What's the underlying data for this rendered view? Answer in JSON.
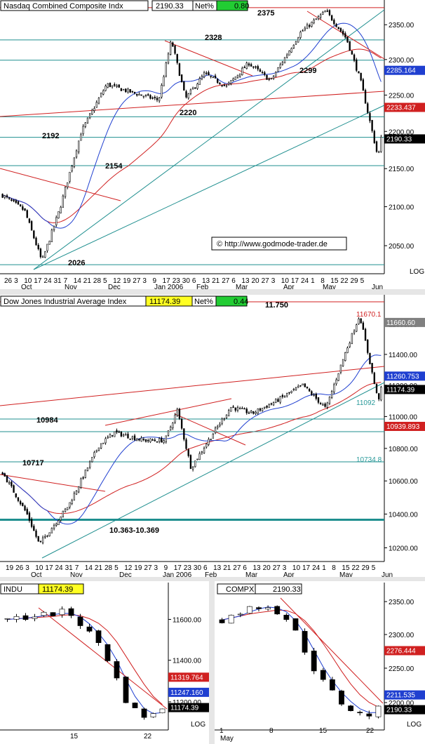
{
  "panels": [
    {
      "id": "nasdaq",
      "header": {
        "title": "Nasdaq Combined Composite Indx",
        "value": "2190.33",
        "net_label": "Net%",
        "net_value": "0.80"
      },
      "log_label": "LOG",
      "ylim": [
        2020,
        2380
      ],
      "yticks": [
        2050,
        2100,
        2150,
        2200,
        2250,
        2300,
        2350
      ],
      "ytick_labels": [
        "2050.00",
        "2100.00",
        "2150.00",
        "2200.00",
        "2250.00",
        "2300.00",
        "2350.00"
      ],
      "right_labels": [
        {
          "text": "2285.164",
          "color": "#1f3fd0",
          "value": 2285.164
        },
        {
          "text": "2233.437",
          "color": "#d02020",
          "value": 2233.437
        },
        {
          "text": "2190.33",
          "color": "#000000",
          "value": 2190.33
        }
      ],
      "day_ticks": [
        "26",
        "3",
        "10",
        "17",
        "24",
        "31",
        "7",
        "14",
        "21",
        "28",
        "5",
        "12",
        "19",
        "27",
        "3",
        "9",
        "17",
        "23",
        "30",
        "6",
        "13",
        "21",
        "27",
        "6",
        "13",
        "20",
        "27",
        "3",
        "10",
        "17",
        "24",
        "1",
        "8",
        "15",
        "22",
        "29",
        "5"
      ],
      "month_labels": [
        "Oct",
        "Nov",
        "Dec",
        "Jan 2006",
        "Feb",
        "Mar",
        "Apr",
        "May",
        "Jun"
      ],
      "annotations": [
        "2375",
        "2328",
        "2299",
        "2220",
        "2192",
        "2154",
        "2026"
      ],
      "watermark": "© http://www.godmode-trader.de"
    },
    {
      "id": "dow",
      "header": {
        "title": "Dow Jones Industrial Average Index",
        "value": "11174.39",
        "net_label": "Net%",
        "net_value": "0.44"
      },
      "ylim": [
        10120,
        11750
      ],
      "yticks": [
        10200,
        10400,
        10600,
        10800,
        11000,
        11200,
        11400,
        11600
      ],
      "ytick_labels": [
        "10200.00",
        "10400.00",
        "10600.00",
        "10800.00",
        "11000.00",
        "11200.00",
        "11400.00",
        "11600.00"
      ],
      "right_labels": [
        {
          "text": "11670.1",
          "color": "#d02020",
          "value": 11670.1,
          "boxed": false
        },
        {
          "text": "11660.60",
          "color": "#808080",
          "value": 11660.6,
          "boxed": true
        },
        {
          "text": "11260.753",
          "color": "#1f3fd0",
          "value": 11260.753,
          "boxed": true
        },
        {
          "text": "11174.39",
          "color": "#000000",
          "value": 11174.39,
          "boxed": true
        },
        {
          "text": "11092",
          "color": "#2a9a9a",
          "value": 11092,
          "boxed": false
        },
        {
          "text": "10939.893",
          "color": "#d02020",
          "value": 10939.893,
          "boxed": true
        },
        {
          "text": "10734.8",
          "color": "#2a9a9a",
          "value": 10734.8,
          "boxed": false
        }
      ],
      "day_ticks": [
        "19",
        "26",
        "3",
        "10",
        "17",
        "24",
        "31",
        "7",
        "14",
        "21",
        "28",
        "5",
        "12",
        "19",
        "27",
        "3",
        "9",
        "17",
        "23",
        "30",
        "6",
        "13",
        "21",
        "27",
        "6",
        "13",
        "20",
        "27",
        "3",
        "10",
        "17",
        "24",
        "1",
        "8",
        "15",
        "22",
        "29",
        "5"
      ],
      "month_labels": [
        "Oct",
        "Nov",
        "Dec",
        "Jan 2006",
        "Feb",
        "Mar",
        "Apr",
        "May",
        "Jun"
      ],
      "annotations": [
        "11.750",
        "10984",
        "10717",
        "10.363-10.369"
      ]
    },
    {
      "id": "indu",
      "header": {
        "title": "INDU",
        "value": "11174.39"
      },
      "log_label": "LOG",
      "ylim": [
        11080,
        11720
      ],
      "yticks": [
        11200,
        11400,
        11600
      ],
      "ytick_labels": [
        "11200.00",
        "11400.00",
        "11600.00"
      ],
      "right_labels": [
        {
          "text": "11319.764",
          "color": "#d02020",
          "value": 11319.764
        },
        {
          "text": "11247.160",
          "color": "#1f3fd0",
          "value": 11247.16
        },
        {
          "text": "11174.39",
          "color": "#000000",
          "value": 11174.39
        }
      ],
      "day_ticks": [
        "15",
        "22"
      ]
    },
    {
      "id": "compx",
      "header": {
        "title": "COMPX",
        "value": "2190.33"
      },
      "log_label": "LOG",
      "ylim": [
        2165,
        2362
      ],
      "yticks": [
        2200,
        2250,
        2300,
        2350
      ],
      "ytick_labels": [
        "2200.00",
        "2250.00",
        "2300.00",
        "2350.00"
      ],
      "right_labels": [
        {
          "text": "2276.444",
          "color": "#d02020",
          "value": 2276.444
        },
        {
          "text": "2211.535",
          "color": "#1f3fd0",
          "value": 2211.535
        },
        {
          "text": "2190.33",
          "color": "#000000",
          "value": 2190.33
        }
      ],
      "day_ticks": [
        "1",
        "8",
        "15",
        "22"
      ],
      "month_labels": [
        "May"
      ]
    }
  ],
  "chart_data": [
    {
      "type": "candlestick",
      "title": "Nasdaq Combined Composite Indx",
      "ylim": [
        2020,
        2380
      ],
      "log_scale": true,
      "x": [
        "2005-09-26",
        "2005-10-10",
        "2005-10-21",
        "2005-11-01",
        "2005-11-15",
        "2005-12-01",
        "2005-12-15",
        "2006-01-03",
        "2006-01-11",
        "2006-01-20",
        "2006-02-01",
        "2006-02-15",
        "2006-03-01",
        "2006-03-15",
        "2006-04-03",
        "2006-04-19",
        "2006-05-02",
        "2006-05-11",
        "2006-05-22",
        "2006-05-24"
      ],
      "close": [
        2115,
        2095,
        2030,
        2095,
        2200,
        2265,
        2255,
        2243,
        2328,
        2245,
        2280,
        2262,
        2295,
        2270,
        2339,
        2370,
        2330,
        2270,
        2165,
        2190.33
      ],
      "key_levels": [
        2375,
        2328,
        2299,
        2220,
        2192,
        2154,
        2026
      ],
      "series": [
        {
          "name": "",
          "kind": "moving-average",
          "color": "#1f3fd0",
          "last": 2285.164
        },
        {
          "name": "",
          "kind": "moving-average",
          "color": "#d02020",
          "last": 2233.437
        }
      ]
    },
    {
      "type": "candlestick",
      "title": "Dow Jones Industrial Average Index",
      "ylim": [
        10120,
        11750
      ],
      "log_scale": true,
      "x": [
        "2005-09-19",
        "2005-10-05",
        "2005-10-13",
        "2005-11-01",
        "2005-11-21",
        "2005-12-01",
        "2005-12-20",
        "2006-01-03",
        "2006-01-11",
        "2006-01-20",
        "2006-02-01",
        "2006-02-15",
        "2006-03-01",
        "2006-03-15",
        "2006-04-03",
        "2006-04-18",
        "2006-05-01",
        "2006-05-10",
        "2006-05-22",
        "2006-05-24"
      ],
      "close": [
        10650,
        10400,
        10220,
        10450,
        10820,
        10900,
        10850,
        10850,
        11040,
        10680,
        10860,
        11060,
        11020,
        11090,
        11200,
        11050,
        11420,
        11660,
        11100,
        11174.39
      ],
      "key_levels": [
        11750,
        10984,
        10717,
        10363,
        10369
      ],
      "series": [
        {
          "name": "",
          "kind": "moving-average",
          "color": "#1f3fd0",
          "last": 11260.753
        },
        {
          "name": "",
          "kind": "moving-average",
          "color": "#d02020",
          "last": 10939.893
        }
      ]
    },
    {
      "type": "candlestick",
      "title": "INDU",
      "ylim": [
        11080,
        11720
      ],
      "x": [
        "2006-05-01",
        "2006-05-08",
        "2006-05-10",
        "2006-05-15",
        "2006-05-19",
        "2006-05-22",
        "2006-05-24"
      ],
      "close": [
        11600,
        11630,
        11640,
        11470,
        11180,
        11120,
        11174.39
      ],
      "series": [
        {
          "name": "",
          "kind": "moving-average",
          "color": "#1f3fd0",
          "last": 11247.16
        },
        {
          "name": "",
          "kind": "moving-average",
          "color": "#d02020",
          "last": 11319.764
        }
      ]
    },
    {
      "type": "candlestick",
      "title": "COMPX",
      "ylim": [
        2165,
        2362
      ],
      "x": [
        "2006-05-01",
        "2006-05-05",
        "2006-05-08",
        "2006-05-11",
        "2006-05-15",
        "2006-05-19",
        "2006-05-22",
        "2006-05-24"
      ],
      "close": [
        2322,
        2340,
        2344,
        2320,
        2240,
        2195,
        2180,
        2190.33
      ],
      "series": [
        {
          "name": "",
          "kind": "moving-average",
          "color": "#1f3fd0",
          "last": 2211.535
        },
        {
          "name": "",
          "kind": "moving-average",
          "color": "#d02020",
          "last": 2276.444
        }
      ]
    }
  ]
}
